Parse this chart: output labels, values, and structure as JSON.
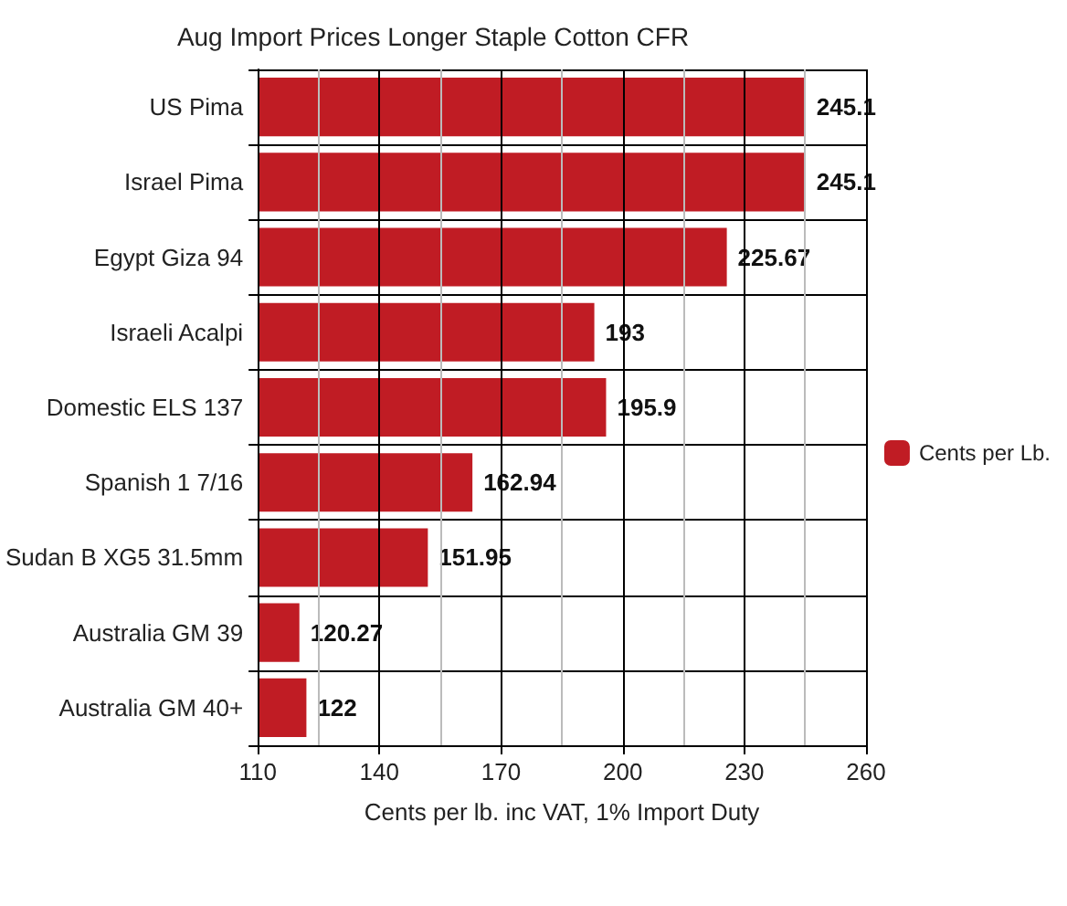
{
  "chart_data": {
    "type": "bar",
    "orientation": "horizontal",
    "title": "Aug Import Prices Longer Staple Cotton CFR",
    "xlabel": "Cents per lb. inc VAT, 1% Import Duty",
    "categories": [
      "US Pima",
      "Israel Pima",
      "Egypt Giza 94",
      "Israeli Acalpi",
      "Domestic ELS 137",
      "Spanish 1 7/16",
      "Sudan B XG5 31.5mm",
      "Australia GM 39",
      "Australia GM 40+"
    ],
    "series": [
      {
        "name": "Cents per Lb.",
        "color": "#c01c24",
        "values": [
          245.1,
          245.1,
          225.67,
          193,
          195.9,
          162.94,
          151.95,
          120.27,
          122
        ]
      }
    ],
    "xlim": [
      110,
      260
    ],
    "xticks": [
      110,
      {
        "value": 125,
        "label": null
      },
      140,
      {
        "value": 155,
        "label": null
      },
      170,
      {
        "value": 185,
        "label": null
      },
      200,
      {
        "value": 215,
        "label": null
      },
      230,
      {
        "value": 245,
        "label": null
      },
      260
    ],
    "data_labels": true,
    "grid": true,
    "legend": "right"
  }
}
